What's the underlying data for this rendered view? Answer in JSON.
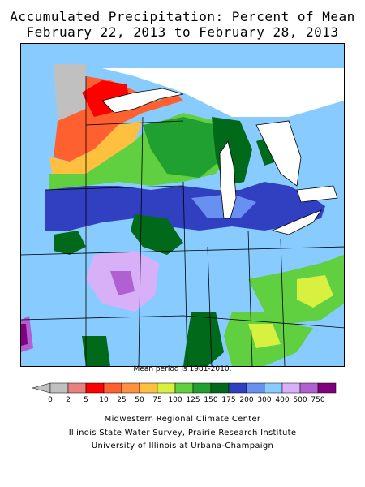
{
  "title": {
    "line1": "Accumulated Precipitation: Percent of Mean",
    "line2": "February 22, 2013 to February 28, 2013"
  },
  "period_note": "Mean period is 1981-2010.",
  "legend": {
    "bins": [
      {
        "label": "0",
        "color": "#c0c0c0"
      },
      {
        "label": "2",
        "color": "#e88080"
      },
      {
        "label": "5",
        "color": "#ff0000"
      },
      {
        "label": "10",
        "color": "#ff6030"
      },
      {
        "label": "25",
        "color": "#ff9040"
      },
      {
        "label": "50",
        "color": "#ffc040"
      },
      {
        "label": "75",
        "color": "#d8f040"
      },
      {
        "label": "100",
        "color": "#60d040"
      },
      {
        "label": "125",
        "color": "#20a030"
      },
      {
        "label": "150",
        "color": "#006a1a"
      },
      {
        "label": "175",
        "color": "#3040c0"
      },
      {
        "label": "200",
        "color": "#6890f0"
      },
      {
        "label": "300",
        "color": "#88ccff"
      },
      {
        "label": "400",
        "color": "#d8b0f8"
      },
      {
        "label": "500",
        "color": "#b060d0"
      },
      {
        "label": "750",
        "color": "#800080"
      }
    ]
  },
  "credits": {
    "line1": "Midwestern Regional Climate Center",
    "line2": "Illinois State Water Survey, Prairie Research Institute",
    "line3": "University of Illinois at Urbana-Champaign"
  },
  "map_colors": {
    "no_data": "#c0c0c0",
    "lakes": "#ffffff",
    "borders": "#000000"
  }
}
